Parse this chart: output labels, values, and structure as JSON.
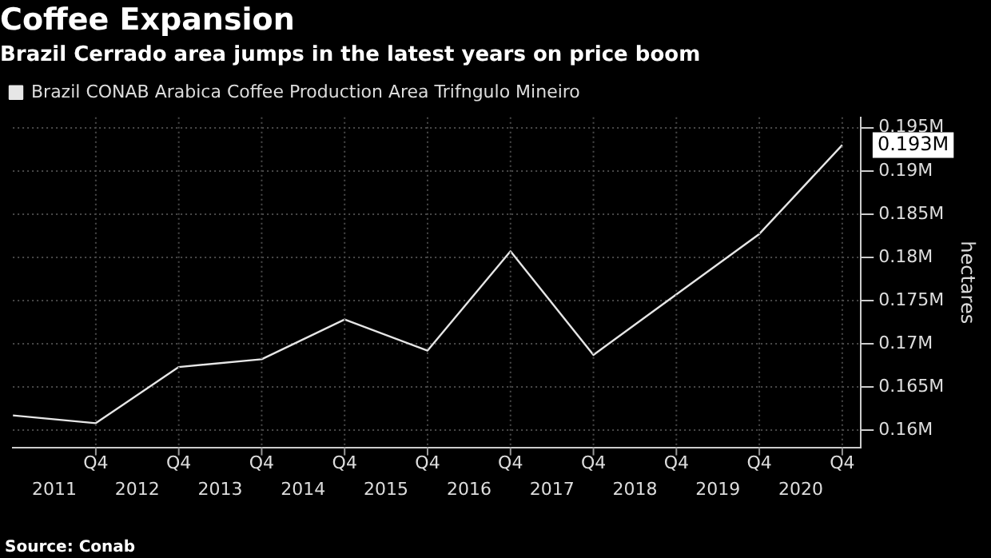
{
  "chart_data": {
    "type": "line",
    "title": "Coffee Expansion",
    "subtitle": "Brazil Cerrado area jumps in the latest years on price boom",
    "ylabel": "hectares",
    "x": [
      2010.5,
      2011.5,
      2012.5,
      2013.5,
      2014.5,
      2015.5,
      2016.5,
      2017.5,
      2018.5,
      2019.5,
      2020.5
    ],
    "series": [
      {
        "name": "Brazil CONAB Arabica Coffee Production Area Trifngulo Mineiro",
        "color": "#e6e6e6",
        "values": [
          0.1617,
          0.1608,
          0.1673,
          0.1682,
          0.1728,
          0.1692,
          0.1807,
          0.1687,
          0.1757,
          0.1827,
          0.193
        ]
      }
    ],
    "xlim": [
      2010.5,
      2020.725
    ],
    "xticks": [
      2011,
      2012,
      2013,
      2014,
      2015,
      2016,
      2017,
      2018,
      2019,
      2020
    ],
    "ylim": [
      0.158,
      0.1962
    ],
    "yticks": [
      {
        "value": 0.16,
        "label": "0.16M"
      },
      {
        "value": 0.165,
        "label": "0.165M"
      },
      {
        "value": 0.17,
        "label": "0.17M"
      },
      {
        "value": 0.175,
        "label": "0.175M"
      },
      {
        "value": 0.18,
        "label": "0.18M"
      },
      {
        "value": 0.185,
        "label": "0.185M"
      },
      {
        "value": 0.19,
        "label": "0.19M"
      },
      {
        "value": 0.195,
        "label": "0.195M"
      }
    ],
    "annotations": [
      {
        "text": "0.193M",
        "x": 2020.5,
        "y": 0.193
      },
      {
        "text": "Q4",
        "x": 2011.5
      },
      {
        "text": "Q4",
        "x": 2012.5
      },
      {
        "text": "Q4",
        "x": 2013.5
      },
      {
        "text": "Q4",
        "x": 2014.5
      },
      {
        "text": "Q4",
        "x": 2015.5
      },
      {
        "text": "Q4",
        "x": 2016.5
      },
      {
        "text": "Q4",
        "x": 2017.5
      },
      {
        "text": "Q4",
        "x": 2018.5
      },
      {
        "text": "Q4",
        "x": 2019.5
      },
      {
        "text": "Q4",
        "x": 2020.5
      },
      "Source: Conab"
    ],
    "grid": true,
    "legend": "top left",
    "marker": "none",
    "line_style": "solid"
  }
}
